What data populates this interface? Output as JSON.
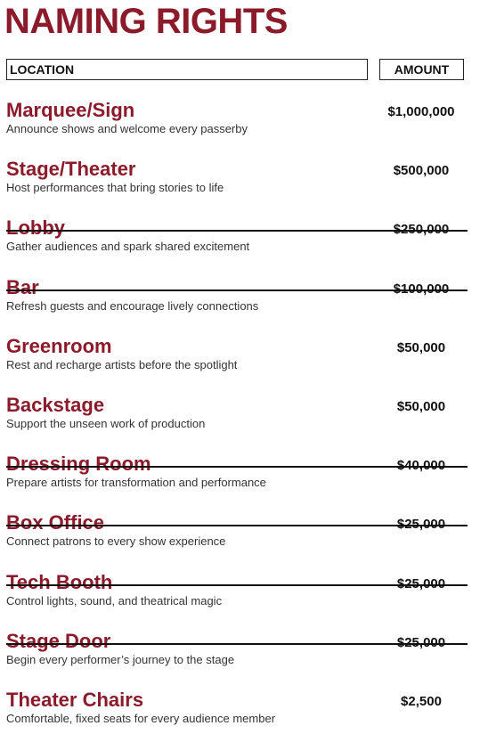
{
  "header": {
    "title": "NAMING RIGHTS"
  },
  "table": {
    "columns": [
      "LOCATION",
      "AMOUNT"
    ],
    "rows": [
      {
        "name": "Marquee/Sign",
        "description": "Announce shows and welcome every passerby",
        "amount": "$1,000,000",
        "struck": false
      },
      {
        "name": "Stage/Theater",
        "description": "Host performances that bring stories to life",
        "amount": "$500,000",
        "struck": false
      },
      {
        "name": "Lobby",
        "description": "Gather audiences and spark shared excitement",
        "amount": "$250,000",
        "struck": true
      },
      {
        "name": "Bar",
        "description": "Refresh guests and encourage lively connections",
        "amount": "$100,000",
        "struck": true
      },
      {
        "name": "Greenroom",
        "description": "Rest and recharge artists before the spotlight",
        "amount": "$50,000",
        "struck": false
      },
      {
        "name": "Backstage",
        "description": "Support the unseen work of production",
        "amount": "$50,000",
        "struck": false
      },
      {
        "name": "Dressing Room",
        "description": "Prepare artists for transformation and performance",
        "amount": "$40,000",
        "struck": true
      },
      {
        "name": "Box Office",
        "description": "Connect patrons to every show experience",
        "amount": "$25,000",
        "struck": true
      },
      {
        "name": "Tech Booth",
        "description": "Control lights, sound, and theatrical magic",
        "amount": "$25,000",
        "struck": true
      },
      {
        "name": "Stage Door",
        "description": "Begin every performer’s journey to the stage",
        "amount": "$25,000",
        "struck": true
      },
      {
        "name": "Theater Chairs",
        "description": "Comfortable, fixed seats for every audience member",
        "amount": "$2,500",
        "struck": false
      }
    ]
  }
}
